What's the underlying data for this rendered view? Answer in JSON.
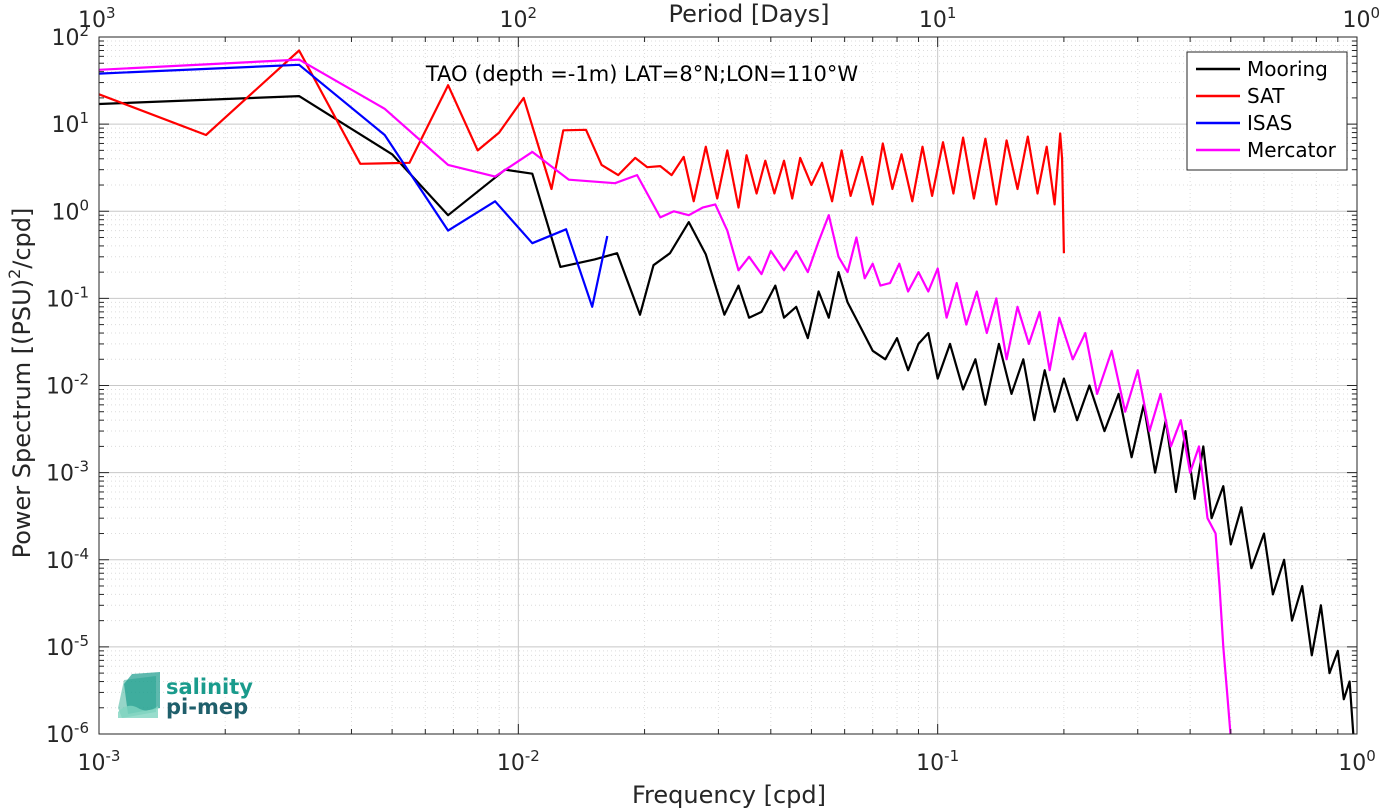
{
  "chart_data": {
    "type": "line",
    "title": "TAO (depth =-1m) LAT=8°N;LON=110°W",
    "xlabel": "Frequency [cpd]",
    "ylabel": "Power Spectrum [(PSU)²/cpd]",
    "x2label": "Period [Days]",
    "xscale": "log",
    "yscale": "log",
    "xlim": [
      0.001,
      1
    ],
    "ylim": [
      1e-06,
      100
    ],
    "grid": true,
    "minor_grid": true,
    "legend_position": "top-right",
    "x_ticks": [
      {
        "base": "10",
        "exp": "-3"
      },
      {
        "base": "10",
        "exp": "-2"
      },
      {
        "base": "10",
        "exp": "-1"
      },
      {
        "base": "10",
        "exp": "0"
      }
    ],
    "x2_ticks": [
      {
        "base": "10",
        "exp": "3"
      },
      {
        "base": "10",
        "exp": "2"
      },
      {
        "base": "10",
        "exp": "1"
      },
      {
        "base": "10",
        "exp": "0"
      }
    ],
    "y_ticks": [
      {
        "base": "10",
        "exp": "-6"
      },
      {
        "base": "10",
        "exp": "-5"
      },
      {
        "base": "10",
        "exp": "-4"
      },
      {
        "base": "10",
        "exp": "-3"
      },
      {
        "base": "10",
        "exp": "-2"
      },
      {
        "base": "10",
        "exp": "-1"
      },
      {
        "base": "10",
        "exp": "0"
      },
      {
        "base": "10",
        "exp": "1"
      },
      {
        "base": "10",
        "exp": "2"
      }
    ],
    "series": [
      {
        "name": "Mooring",
        "color": "#000000",
        "x": [
          0.001,
          0.003,
          0.005,
          0.0068,
          0.0093,
          0.0108,
          0.0126,
          0.0152,
          0.0172,
          0.0195,
          0.021,
          0.023,
          0.0255,
          0.028,
          0.031,
          0.0335,
          0.0355,
          0.038,
          0.041,
          0.043,
          0.046,
          0.049,
          0.052,
          0.055,
          0.058,
          0.061,
          0.065,
          0.07,
          0.075,
          0.08,
          0.085,
          0.09,
          0.095,
          0.1,
          0.107,
          0.115,
          0.123,
          0.13,
          0.14,
          0.15,
          0.16,
          0.17,
          0.18,
          0.19,
          0.2,
          0.215,
          0.23,
          0.25,
          0.27,
          0.29,
          0.31,
          0.33,
          0.35,
          0.37,
          0.39,
          0.41,
          0.43,
          0.45,
          0.48,
          0.5,
          0.53,
          0.56,
          0.6,
          0.63,
          0.67,
          0.7,
          0.74,
          0.78,
          0.82,
          0.86,
          0.9,
          0.93,
          0.96,
          0.98,
          1.0
        ],
        "y": [
          17,
          21,
          4.5,
          0.9,
          3,
          2.7,
          0.23,
          0.28,
          0.33,
          0.065,
          0.24,
          0.33,
          0.75,
          0.32,
          0.065,
          0.14,
          0.06,
          0.07,
          0.14,
          0.06,
          0.08,
          0.035,
          0.12,
          0.06,
          0.2,
          0.09,
          0.05,
          0.025,
          0.02,
          0.035,
          0.015,
          0.03,
          0.04,
          0.012,
          0.03,
          0.009,
          0.02,
          0.006,
          0.03,
          0.008,
          0.02,
          0.004,
          0.015,
          0.005,
          0.012,
          0.004,
          0.01,
          0.003,
          0.008,
          0.0015,
          0.006,
          0.001,
          0.004,
          0.0006,
          0.003,
          0.0005,
          0.002,
          0.0003,
          0.0007,
          0.00015,
          0.0004,
          8e-05,
          0.0002,
          4e-05,
          0.0001,
          2e-05,
          5e-05,
          8e-06,
          3e-05,
          5e-06,
          9e-06,
          2.5e-06,
          4e-06,
          1e-06,
          8e-07
        ]
      },
      {
        "name": "SAT",
        "color": "#ff0000",
        "x": [
          0.001,
          0.0018,
          0.003,
          0.0042,
          0.0055,
          0.0068,
          0.008,
          0.009,
          0.0103,
          0.012,
          0.0128,
          0.0145,
          0.0158,
          0.0173,
          0.019,
          0.0203,
          0.0218,
          0.0232,
          0.0248,
          0.0262,
          0.028,
          0.0298,
          0.0315,
          0.0335,
          0.035,
          0.037,
          0.0388,
          0.0408,
          0.043,
          0.045,
          0.047,
          0.05,
          0.053,
          0.056,
          0.059,
          0.062,
          0.066,
          0.07,
          0.074,
          0.078,
          0.082,
          0.087,
          0.092,
          0.097,
          0.103,
          0.109,
          0.115,
          0.122,
          0.13,
          0.138,
          0.146,
          0.155,
          0.164,
          0.173,
          0.182,
          0.19,
          0.196,
          0.198,
          0.2
        ],
        "y": [
          22,
          7.5,
          70,
          3.5,
          3.6,
          28,
          5,
          8,
          20,
          1.8,
          8.5,
          8.6,
          3.4,
          2.6,
          4.1,
          3.2,
          3.3,
          2.6,
          4.2,
          1.3,
          5.5,
          1.4,
          5,
          1.1,
          4.4,
          1.6,
          3.8,
          1.6,
          3.8,
          1.4,
          4.1,
          2.0,
          3.6,
          1.3,
          5.0,
          1.5,
          4.2,
          1.2,
          6.0,
          1.8,
          4.5,
          1.3,
          5.5,
          1.5,
          6.2,
          1.6,
          7.0,
          1.4,
          6.8,
          1.2,
          6.5,
          1.8,
          7.2,
          1.6,
          5.5,
          1.2,
          7.8,
          4.0,
          0.33
        ]
      },
      {
        "name": "ISAS",
        "color": "#0000ff",
        "x": [
          0.001,
          0.003,
          0.0048,
          0.0068,
          0.0088,
          0.0108,
          0.013,
          0.015,
          0.0163
        ],
        "y": [
          38,
          48,
          7.5,
          0.6,
          1.3,
          0.43,
          0.62,
          0.08,
          0.52
        ]
      },
      {
        "name": "Mercator",
        "color": "#ff00ff",
        "x": [
          0.001,
          0.003,
          0.0048,
          0.0068,
          0.0088,
          0.0108,
          0.0132,
          0.017,
          0.0192,
          0.0218,
          0.0235,
          0.0255,
          0.0275,
          0.0295,
          0.0315,
          0.0335,
          0.0355,
          0.038,
          0.04,
          0.043,
          0.046,
          0.049,
          0.052,
          0.055,
          0.058,
          0.061,
          0.064,
          0.067,
          0.07,
          0.073,
          0.077,
          0.081,
          0.085,
          0.09,
          0.095,
          0.1,
          0.105,
          0.111,
          0.117,
          0.124,
          0.131,
          0.138,
          0.146,
          0.155,
          0.165,
          0.175,
          0.185,
          0.195,
          0.21,
          0.225,
          0.24,
          0.26,
          0.28,
          0.3,
          0.32,
          0.34,
          0.36,
          0.38,
          0.4,
          0.42,
          0.44,
          0.46,
          0.47,
          0.48,
          0.49,
          0.5
        ],
        "y": [
          42,
          55,
          15,
          3.4,
          2.5,
          4.8,
          2.3,
          2.1,
          2.6,
          0.85,
          1.0,
          0.9,
          1.1,
          1.2,
          0.6,
          0.21,
          0.3,
          0.19,
          0.35,
          0.21,
          0.35,
          0.2,
          0.45,
          0.9,
          0.3,
          0.2,
          0.5,
          0.17,
          0.25,
          0.14,
          0.15,
          0.25,
          0.12,
          0.2,
          0.12,
          0.22,
          0.06,
          0.15,
          0.05,
          0.12,
          0.04,
          0.1,
          0.02,
          0.08,
          0.03,
          0.07,
          0.015,
          0.06,
          0.02,
          0.04,
          0.008,
          0.025,
          0.005,
          0.015,
          0.003,
          0.008,
          0.002,
          0.004,
          0.001,
          0.002,
          0.0003,
          0.0002,
          5e-05,
          1e-05,
          3e-06,
          9e-07
        ]
      }
    ]
  },
  "logo": {
    "line1": "salinity",
    "line2": "pi-mep",
    "color": "#1a9b8c"
  }
}
